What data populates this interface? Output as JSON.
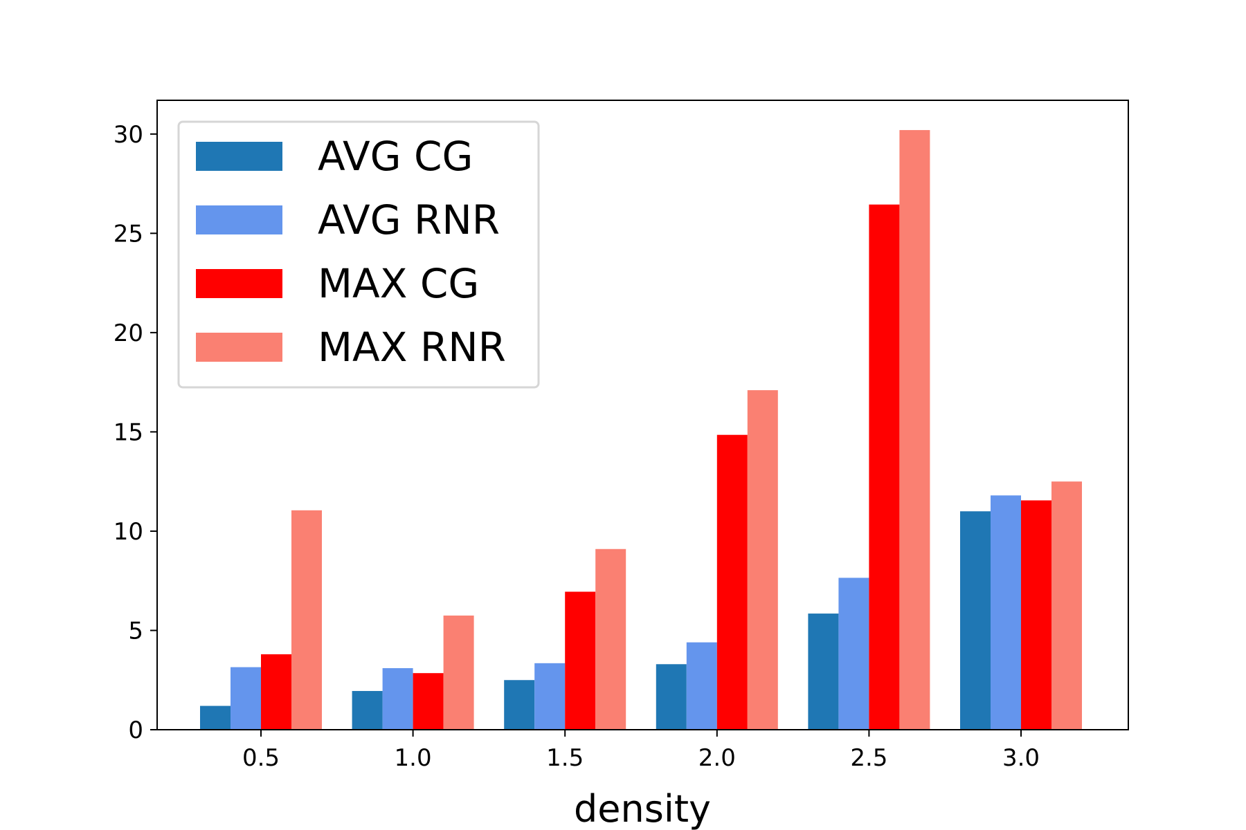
{
  "chart_data": {
    "type": "bar",
    "xlabel": "density",
    "ylabel": "",
    "categories": [
      "0.5",
      "1.0",
      "1.5",
      "2.0",
      "2.5",
      "3.0"
    ],
    "ylim": [
      0,
      31.7
    ],
    "yticks": [
      "0",
      "5",
      "10",
      "15",
      "20",
      "25",
      "30"
    ],
    "ytick_values": [
      0,
      5,
      10,
      15,
      20,
      25,
      30
    ],
    "grid": false,
    "legend_position": "top-left",
    "series": [
      {
        "name": "AVG CG",
        "color": "#1f77b4",
        "values": [
          1.2,
          1.95,
          2.5,
          3.3,
          5.85,
          11.0
        ]
      },
      {
        "name": "AVG RNR",
        "color": "#6495ed",
        "values": [
          3.15,
          3.1,
          3.35,
          4.4,
          7.65,
          11.8
        ]
      },
      {
        "name": "MAX CG",
        "color": "#ff0000",
        "values": [
          3.8,
          2.85,
          6.95,
          14.85,
          26.45,
          11.55
        ]
      },
      {
        "name": "MAX RNR",
        "color": "#fa8072",
        "values": [
          11.05,
          5.75,
          9.1,
          17.1,
          30.2,
          12.5
        ]
      }
    ]
  }
}
